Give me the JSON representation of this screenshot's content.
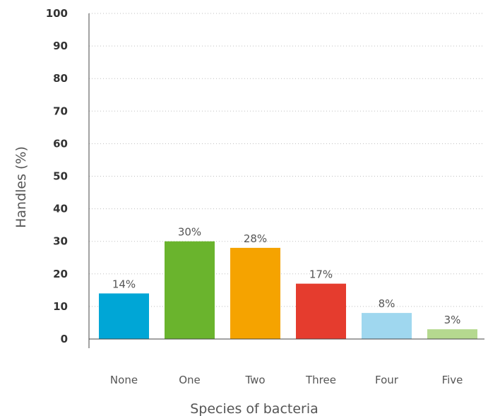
{
  "chart_data": {
    "type": "bar",
    "categories": [
      "None",
      "One",
      "Two",
      "Three",
      "Four",
      "Five"
    ],
    "values": [
      14,
      30,
      28,
      17,
      8,
      3
    ],
    "value_labels": [
      "14%",
      "30%",
      "28%",
      "17%",
      "8%",
      "3%"
    ],
    "colors": [
      "#00a6d6",
      "#6ab42d",
      "#f5a300",
      "#e53c2e",
      "#9fd7ef",
      "#b5d98f"
    ],
    "title": "",
    "xlabel": "Species of bacteria",
    "ylabel": "Handles (%)",
    "ylim": [
      0,
      100
    ],
    "yticks": [
      "0",
      "10",
      "20",
      "30",
      "40",
      "50",
      "60",
      "70",
      "80",
      "90",
      "100"
    ],
    "grid": true
  }
}
